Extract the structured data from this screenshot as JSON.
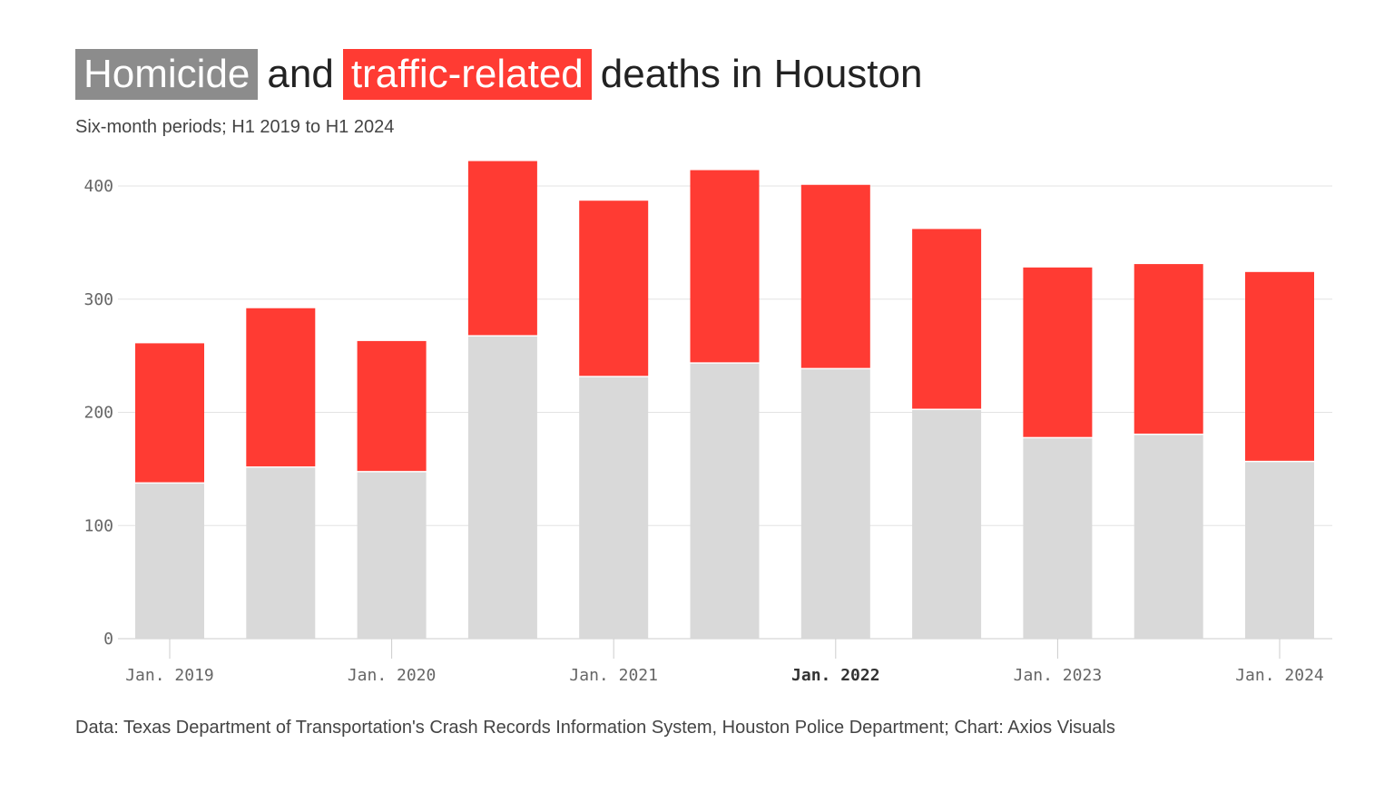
{
  "title": {
    "part1": "Homicide",
    "part2": "and",
    "part3": "traffic-related",
    "part4": "deaths in Houston"
  },
  "subtitle": "Six-month periods; H1 2019 to H1 2024",
  "source": "Data: Texas Department of Transportation's Crash Records Information System, Houston Police Department; Chart: Axios Visuals",
  "colors": {
    "homicide": "#d9d9d9",
    "traffic": "#ff3b33",
    "title_gray": "#8c8c8c"
  },
  "chart_data": {
    "type": "bar",
    "stacked": true,
    "categories": [
      "H1 2019",
      "H2 2019",
      "H1 2020",
      "H2 2020",
      "H1 2021",
      "H2 2021",
      "H1 2022",
      "H2 2022",
      "H1 2023",
      "H2 2023",
      "H1 2024"
    ],
    "series": [
      {
        "name": "Homicide",
        "values": [
          137,
          151,
          147,
          267,
          231,
          243,
          238,
          202,
          177,
          180,
          156
        ]
      },
      {
        "name": "traffic-related",
        "values": [
          124,
          141,
          116,
          155,
          156,
          171,
          163,
          160,
          151,
          151,
          168
        ]
      }
    ],
    "ylim": [
      0,
      400
    ],
    "yticks": [
      "0",
      "100",
      "200",
      "300",
      "400"
    ],
    "xtick_labels": [
      "Jan. 2019",
      "Jan. 2020",
      "Jan. 2021",
      "Jan. 2022",
      "Jan. 2023",
      "Jan. 2024"
    ],
    "grid": true
  }
}
